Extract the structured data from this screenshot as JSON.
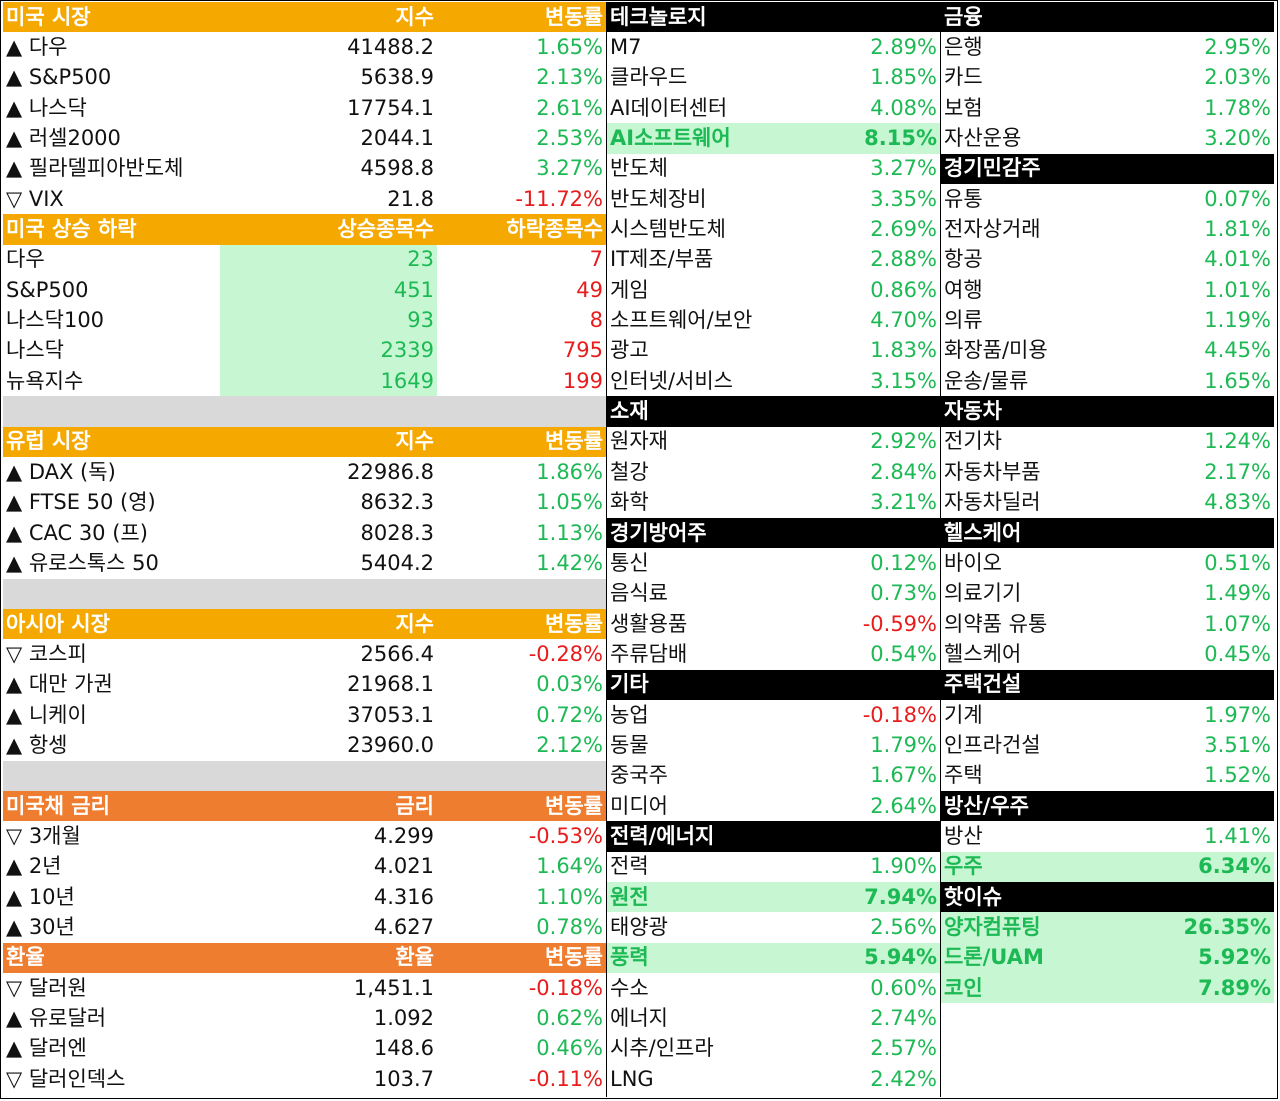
{
  "colors": {
    "orange": "#F5A800",
    "deep_orange": "#EE7D2F",
    "up": "#1DB954",
    "down": "#E81C1C",
    "highlight": "#C6F7D2"
  },
  "left": [
    {
      "kind": "header",
      "style": "orange",
      "a": "미국 시장",
      "b": "지수",
      "c": "변동률"
    },
    {
      "kind": "row",
      "a": "▲ 다우",
      "b": "41488.2",
      "c": "1.65%",
      "dir": "up"
    },
    {
      "kind": "row",
      "a": "▲ S&P500",
      "b": "5638.9",
      "c": "2.13%",
      "dir": "up"
    },
    {
      "kind": "row",
      "a": "▲ 나스닥",
      "b": "17754.1",
      "c": "2.61%",
      "dir": "up"
    },
    {
      "kind": "row",
      "a": "▲ 러셀2000",
      "b": "2044.1",
      "c": "2.53%",
      "dir": "up"
    },
    {
      "kind": "row",
      "a": "▲ 필라델피아반도체",
      "b": "4598.8",
      "c": "3.27%",
      "dir": "up"
    },
    {
      "kind": "row",
      "a": "▽ VIX",
      "b": "21.8",
      "c": "-11.72%",
      "dir": "down"
    },
    {
      "kind": "header",
      "style": "orange",
      "a": "미국 상승 하락",
      "b": "상승종목수",
      "c": "하락종목수"
    },
    {
      "kind": "adv",
      "a": "다우",
      "b": "23",
      "c": "7"
    },
    {
      "kind": "adv",
      "a": "S&P500",
      "b": "451",
      "c": "49"
    },
    {
      "kind": "adv",
      "a": "나스닥100",
      "b": "93",
      "c": "8"
    },
    {
      "kind": "adv",
      "a": "나스닥",
      "b": "2339",
      "c": "795"
    },
    {
      "kind": "adv",
      "a": "뉴욕지수",
      "b": "1649",
      "c": "199"
    },
    {
      "kind": "spacer"
    },
    {
      "kind": "header",
      "style": "orange",
      "a": "유럽 시장",
      "b": "지수",
      "c": "변동률"
    },
    {
      "kind": "row",
      "a": "▲ DAX (독)",
      "b": "22986.8",
      "c": "1.86%",
      "dir": "up"
    },
    {
      "kind": "row",
      "a": "▲ FTSE 50 (영)",
      "b": "8632.3",
      "c": "1.05%",
      "dir": "up"
    },
    {
      "kind": "row",
      "a": "▲ CAC 30 (프)",
      "b": "8028.3",
      "c": "1.13%",
      "dir": "up"
    },
    {
      "kind": "row",
      "a": "▲ 유로스톡스 50",
      "b": "5404.2",
      "c": "1.42%",
      "dir": "up"
    },
    {
      "kind": "spacer"
    },
    {
      "kind": "header",
      "style": "orange",
      "a": "아시아 시장",
      "b": "지수",
      "c": "변동률"
    },
    {
      "kind": "row",
      "a": "▽ 코스피",
      "b": "2566.4",
      "c": "-0.28%",
      "dir": "down"
    },
    {
      "kind": "row",
      "a": "▲ 대만 가권",
      "b": "21968.1",
      "c": "0.03%",
      "dir": "up"
    },
    {
      "kind": "row",
      "a": "▲ 니케이",
      "b": "37053.1",
      "c": "0.72%",
      "dir": "up"
    },
    {
      "kind": "row",
      "a": "▲ 항셍",
      "b": "23960.0",
      "c": "2.12%",
      "dir": "up"
    },
    {
      "kind": "spacer"
    },
    {
      "kind": "header",
      "style": "deep",
      "a": "미국채 금리",
      "b": "금리",
      "c": "변동률"
    },
    {
      "kind": "row",
      "a": "▽ 3개월",
      "b": "4.299",
      "c": "-0.53%",
      "dir": "down"
    },
    {
      "kind": "row",
      "a": "▲ 2년",
      "b": "4.021",
      "c": "1.64%",
      "dir": "up"
    },
    {
      "kind": "row",
      "a": "▲ 10년",
      "b": "4.316",
      "c": "1.10%",
      "dir": "up"
    },
    {
      "kind": "row",
      "a": "▲ 30년",
      "b": "4.627",
      "c": "0.78%",
      "dir": "up"
    },
    {
      "kind": "header",
      "style": "deep",
      "a": "환율",
      "b": "환율",
      "c": "변동률"
    },
    {
      "kind": "row",
      "a": "▽ 달러원",
      "b": "1,451.1",
      "c": "-0.18%",
      "dir": "down"
    },
    {
      "kind": "row",
      "a": "▲ 유로달러",
      "b": "1.092",
      "c": "0.62%",
      "dir": "up"
    },
    {
      "kind": "row",
      "a": "▲ 달러엔",
      "b": "148.6",
      "c": "0.46%",
      "dir": "up"
    },
    {
      "kind": "row",
      "a": "▽ 달러인덱스",
      "b": "103.7",
      "c": "-0.11%",
      "dir": "down"
    }
  ],
  "mid": [
    {
      "kind": "sector",
      "a": "테크놀로지"
    },
    {
      "kind": "item",
      "a": "M7",
      "c": "2.89%",
      "dir": "up"
    },
    {
      "kind": "item",
      "a": "클라우드",
      "c": "1.85%",
      "dir": "up"
    },
    {
      "kind": "item",
      "a": "AI데이터센터",
      "c": "4.08%",
      "dir": "up"
    },
    {
      "kind": "item",
      "a": "AI소프트웨어",
      "c": "8.15%",
      "dir": "up",
      "hi": true
    },
    {
      "kind": "item",
      "a": "반도체",
      "c": "3.27%",
      "dir": "up"
    },
    {
      "kind": "item",
      "a": "반도체장비",
      "c": "3.35%",
      "dir": "up"
    },
    {
      "kind": "item",
      "a": "시스템반도체",
      "c": "2.69%",
      "dir": "up"
    },
    {
      "kind": "item",
      "a": "IT제조/부품",
      "c": "2.88%",
      "dir": "up"
    },
    {
      "kind": "item",
      "a": "게임",
      "c": "0.86%",
      "dir": "up"
    },
    {
      "kind": "item",
      "a": "소프트웨어/보안",
      "c": "4.70%",
      "dir": "up"
    },
    {
      "kind": "item",
      "a": "광고",
      "c": "1.83%",
      "dir": "up"
    },
    {
      "kind": "item",
      "a": "인터넷/서비스",
      "c": "3.15%",
      "dir": "up"
    },
    {
      "kind": "sector",
      "a": "소재"
    },
    {
      "kind": "item",
      "a": "원자재",
      "c": "2.92%",
      "dir": "up"
    },
    {
      "kind": "item",
      "a": "철강",
      "c": "2.84%",
      "dir": "up"
    },
    {
      "kind": "item",
      "a": "화학",
      "c": "3.21%",
      "dir": "up"
    },
    {
      "kind": "sector",
      "a": "경기방어주"
    },
    {
      "kind": "item",
      "a": "통신",
      "c": "0.12%",
      "dir": "up"
    },
    {
      "kind": "item",
      "a": "음식료",
      "c": "0.73%",
      "dir": "up"
    },
    {
      "kind": "item",
      "a": "생활용품",
      "c": "-0.59%",
      "dir": "down"
    },
    {
      "kind": "item",
      "a": "주류담배",
      "c": "0.54%",
      "dir": "up"
    },
    {
      "kind": "sector",
      "a": "기타"
    },
    {
      "kind": "item",
      "a": "농업",
      "c": "-0.18%",
      "dir": "down"
    },
    {
      "kind": "item",
      "a": "동물",
      "c": "1.79%",
      "dir": "up"
    },
    {
      "kind": "item",
      "a": "중국주",
      "c": "1.67%",
      "dir": "up"
    },
    {
      "kind": "item",
      "a": "미디어",
      "c": "2.64%",
      "dir": "up"
    },
    {
      "kind": "sector",
      "a": "전력/에너지"
    },
    {
      "kind": "item",
      "a": "전력",
      "c": "1.90%",
      "dir": "up"
    },
    {
      "kind": "item",
      "a": "원전",
      "c": "7.94%",
      "dir": "up",
      "hi": true
    },
    {
      "kind": "item",
      "a": "태양광",
      "c": "2.56%",
      "dir": "up"
    },
    {
      "kind": "item",
      "a": "풍력",
      "c": "5.94%",
      "dir": "up",
      "hi": true
    },
    {
      "kind": "item",
      "a": "수소",
      "c": "0.60%",
      "dir": "up"
    },
    {
      "kind": "item",
      "a": "에너지",
      "c": "2.74%",
      "dir": "up"
    },
    {
      "kind": "item",
      "a": "시추/인프라",
      "c": "2.57%",
      "dir": "up"
    },
    {
      "kind": "item",
      "a": "LNG",
      "c": "2.42%",
      "dir": "up"
    }
  ],
  "right": [
    {
      "kind": "sector",
      "a": "금융"
    },
    {
      "kind": "item",
      "a": "은행",
      "c": "2.95%",
      "dir": "up"
    },
    {
      "kind": "item",
      "a": "카드",
      "c": "2.03%",
      "dir": "up"
    },
    {
      "kind": "item",
      "a": "보험",
      "c": "1.78%",
      "dir": "up"
    },
    {
      "kind": "item",
      "a": "자산운용",
      "c": "3.20%",
      "dir": "up"
    },
    {
      "kind": "sector",
      "a": "경기민감주"
    },
    {
      "kind": "item",
      "a": "유통",
      "c": "0.07%",
      "dir": "up"
    },
    {
      "kind": "item",
      "a": "전자상거래",
      "c": "1.81%",
      "dir": "up"
    },
    {
      "kind": "item",
      "a": "항공",
      "c": "4.01%",
      "dir": "up"
    },
    {
      "kind": "item",
      "a": "여행",
      "c": "1.01%",
      "dir": "up"
    },
    {
      "kind": "item",
      "a": "의류",
      "c": "1.19%",
      "dir": "up"
    },
    {
      "kind": "item",
      "a": "화장품/미용",
      "c": "4.45%",
      "dir": "up"
    },
    {
      "kind": "item",
      "a": "운송/물류",
      "c": "1.65%",
      "dir": "up"
    },
    {
      "kind": "sector",
      "a": "자동차"
    },
    {
      "kind": "item",
      "a": "전기차",
      "c": "1.24%",
      "dir": "up"
    },
    {
      "kind": "item",
      "a": "자동차부품",
      "c": "2.17%",
      "dir": "up"
    },
    {
      "kind": "item",
      "a": "자동차딜러",
      "c": "4.83%",
      "dir": "up"
    },
    {
      "kind": "sector",
      "a": "헬스케어"
    },
    {
      "kind": "item",
      "a": "바이오",
      "c": "0.51%",
      "dir": "up"
    },
    {
      "kind": "item",
      "a": "의료기기",
      "c": "1.49%",
      "dir": "up"
    },
    {
      "kind": "item",
      "a": "의약품 유통",
      "c": "1.07%",
      "dir": "up"
    },
    {
      "kind": "item",
      "a": "헬스케어",
      "c": "0.45%",
      "dir": "up"
    },
    {
      "kind": "sector",
      "a": "주택건설"
    },
    {
      "kind": "item",
      "a": "기계",
      "c": "1.97%",
      "dir": "up"
    },
    {
      "kind": "item",
      "a": "인프라건설",
      "c": "3.51%",
      "dir": "up"
    },
    {
      "kind": "item",
      "a": "주택",
      "c": "1.52%",
      "dir": "up"
    },
    {
      "kind": "sector",
      "a": "방산/우주"
    },
    {
      "kind": "item",
      "a": "방산",
      "c": "1.41%",
      "dir": "up"
    },
    {
      "kind": "item",
      "a": "우주",
      "c": "6.34%",
      "dir": "up",
      "hi": true
    },
    {
      "kind": "sector",
      "a": "핫이슈"
    },
    {
      "kind": "item",
      "a": "양자컴퓨팅",
      "c": "26.35%",
      "dir": "up",
      "hi": true
    },
    {
      "kind": "item",
      "a": "드론/UAM",
      "c": "5.92%",
      "dir": "up",
      "hi": true
    },
    {
      "kind": "item",
      "a": "코인",
      "c": "7.89%",
      "dir": "up",
      "hi": true
    }
  ]
}
